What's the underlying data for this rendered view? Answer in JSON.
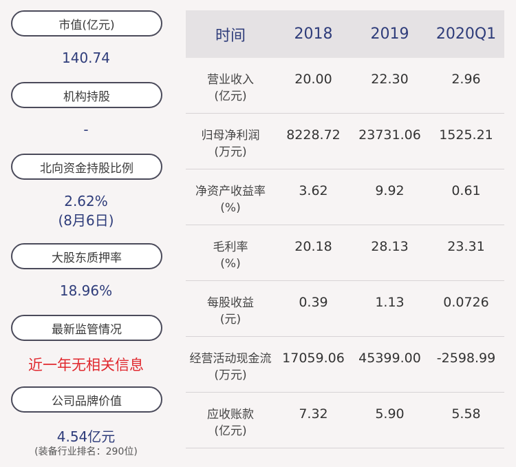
{
  "left": {
    "market_cap": {
      "label": "市值(亿元)",
      "value": "140.74"
    },
    "institution": {
      "label": "机构持股",
      "value": "-"
    },
    "northbound": {
      "label": "北向资金持股比例",
      "value": "2.62%",
      "date": "(8月6日)"
    },
    "pledge": {
      "label": "大股东质押率",
      "value": "18.96%"
    },
    "regulation": {
      "label": "最新监管情况",
      "value": "近一年无相关信息"
    },
    "brand": {
      "label": "公司品牌价值",
      "value": "4.54亿元",
      "note": "(装备行业排名：290位)"
    }
  },
  "table": {
    "headers": [
      "时间",
      "2018",
      "2019",
      "2020Q1"
    ],
    "rows": [
      {
        "label": "营业收入",
        "unit": "(亿元)",
        "values": [
          "20.00",
          "22.30",
          "2.96"
        ]
      },
      {
        "label": "归母净利润",
        "unit": "(万元)",
        "values": [
          "8228.72",
          "23731.06",
          "1525.21"
        ]
      },
      {
        "label": "净资产收益率",
        "unit": "(%)",
        "values": [
          "3.62",
          "9.92",
          "0.61"
        ]
      },
      {
        "label": "毛利率",
        "unit": "(%)",
        "values": [
          "20.18",
          "28.13",
          "23.31"
        ]
      },
      {
        "label": "每股收益",
        "unit": "(元)",
        "values": [
          "0.39",
          "1.13",
          "0.0726"
        ]
      },
      {
        "label": "经营活动现金流",
        "unit": "(万元)",
        "values": [
          "17059.06",
          "45399.00",
          "-2598.99"
        ]
      },
      {
        "label": "应收账款",
        "unit": "(亿元)",
        "values": [
          "7.32",
          "5.90",
          "5.58"
        ]
      }
    ]
  }
}
